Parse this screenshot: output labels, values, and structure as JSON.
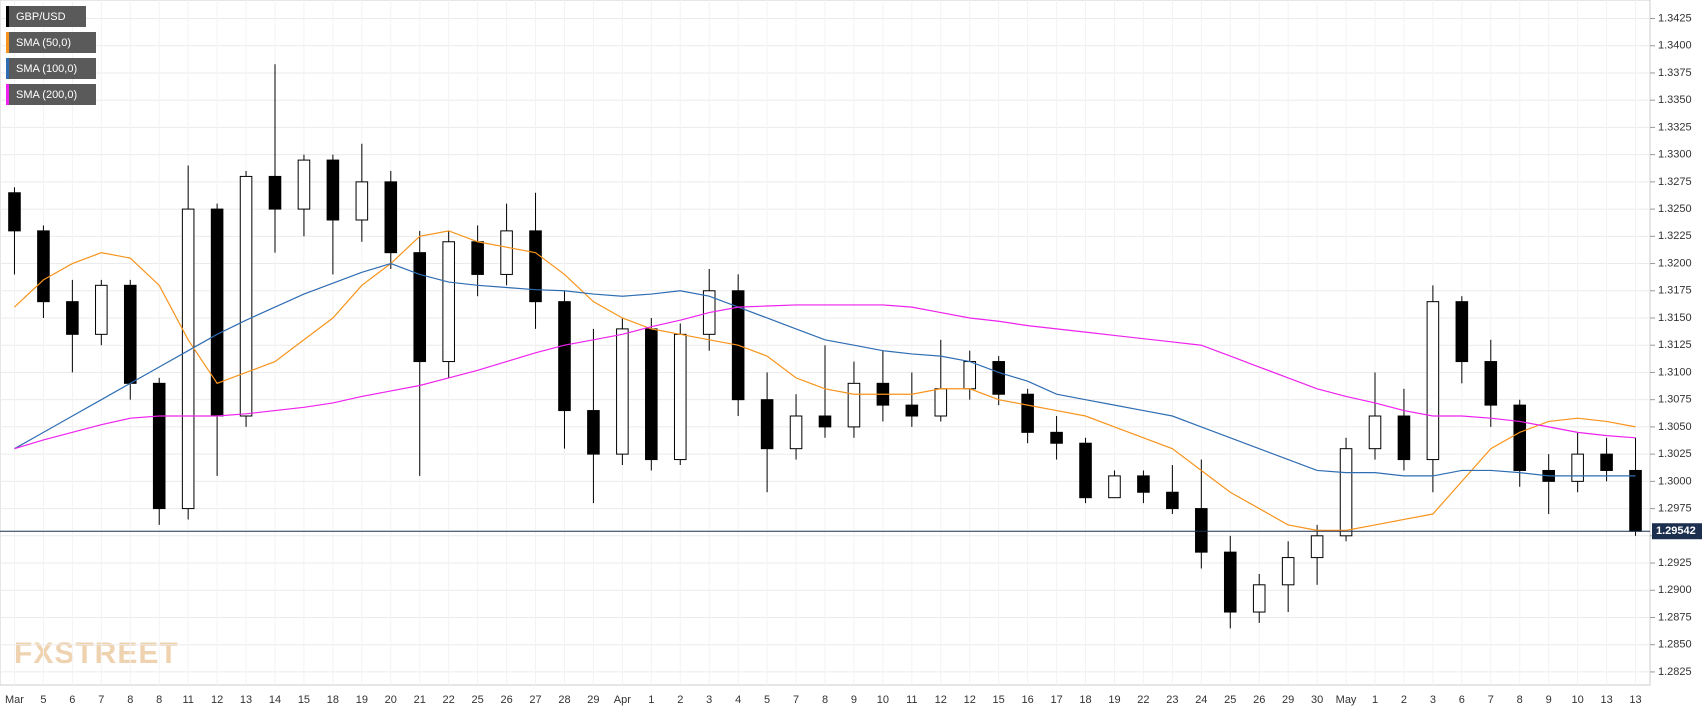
{
  "chart_data": {
    "type": "candlestick",
    "categories": [
      "Mar",
      "5",
      "6",
      "7",
      "8",
      "8",
      "11",
      "12",
      "13",
      "14",
      "15",
      "18",
      "19",
      "20",
      "21",
      "22",
      "25",
      "26",
      "27",
      "28",
      "29",
      "Apr",
      "1",
      "2",
      "3",
      "4",
      "5",
      "7",
      "8",
      "9",
      "10",
      "11",
      "12",
      "12",
      "15",
      "16",
      "17",
      "18",
      "19",
      "22",
      "23",
      "24",
      "25",
      "26",
      "29",
      "30",
      "May",
      "1",
      "2",
      "3",
      "6",
      "7",
      "8",
      "9",
      "10",
      "13",
      "13"
    ],
    "name": "GBP/USD",
    "open": [
      1.3265,
      1.323,
      1.3165,
      1.3135,
      1.318,
      1.309,
      1.2975,
      1.325,
      1.306,
      1.328,
      1.325,
      1.3295,
      1.324,
      1.3275,
      1.321,
      1.311,
      1.322,
      1.319,
      1.323,
      1.3165,
      1.3065,
      1.3025,
      1.314,
      1.302,
      1.3135,
      1.3175,
      1.3075,
      1.303,
      1.306,
      1.305,
      1.309,
      1.307,
      1.306,
      1.3085,
      1.311,
      1.308,
      1.3045,
      1.3035,
      1.2985,
      1.3005,
      1.299,
      1.2975,
      1.2935,
      1.288,
      1.2905,
      1.293,
      1.295,
      1.303,
      1.306,
      1.302,
      1.3165,
      1.311,
      1.307,
      1.301,
      1.3,
      1.3025,
      1.301
    ],
    "high": [
      1.327,
      1.3235,
      1.3185,
      1.3185,
      1.3185,
      1.3095,
      1.329,
      1.3255,
      1.3285,
      1.3383,
      1.33,
      1.33,
      1.331,
      1.3285,
      1.323,
      1.323,
      1.3235,
      1.3255,
      1.3265,
      1.3175,
      1.314,
      1.315,
      1.315,
      1.3145,
      1.3195,
      1.319,
      1.31,
      1.308,
      1.3125,
      1.311,
      1.312,
      1.31,
      1.313,
      1.312,
      1.3115,
      1.3085,
      1.306,
      1.304,
      1.301,
      1.301,
      1.3015,
      1.302,
      1.295,
      1.2915,
      1.2945,
      1.296,
      1.304,
      1.31,
      1.3085,
      1.318,
      1.317,
      1.313,
      1.3075,
      1.3025,
      1.3045,
      1.304,
      1.304
    ],
    "low": [
      1.319,
      1.315,
      1.31,
      1.3125,
      1.3075,
      1.296,
      1.2965,
      1.3005,
      1.305,
      1.321,
      1.3225,
      1.319,
      1.322,
      1.3195,
      1.3005,
      1.3095,
      1.317,
      1.318,
      1.314,
      1.303,
      1.298,
      1.3015,
      1.301,
      1.3015,
      1.312,
      1.306,
      1.299,
      1.302,
      1.304,
      1.304,
      1.3055,
      1.305,
      1.3055,
      1.3075,
      1.307,
      1.3035,
      1.302,
      1.298,
      1.2985,
      1.298,
      1.297,
      1.292,
      1.2865,
      1.287,
      1.288,
      1.2905,
      1.2945,
      1.302,
      1.301,
      1.299,
      1.309,
      1.305,
      1.2995,
      1.297,
      1.299,
      1.3,
      1.295
    ],
    "close": [
      1.323,
      1.3165,
      1.3135,
      1.318,
      1.309,
      1.2975,
      1.325,
      1.306,
      1.328,
      1.325,
      1.3295,
      1.324,
      1.3275,
      1.321,
      1.311,
      1.322,
      1.319,
      1.323,
      1.3165,
      1.3065,
      1.3025,
      1.314,
      1.302,
      1.3135,
      1.3175,
      1.3075,
      1.303,
      1.306,
      1.305,
      1.309,
      1.307,
      1.306,
      1.3085,
      1.311,
      1.308,
      1.3045,
      1.3035,
      1.2985,
      1.3005,
      1.299,
      1.2975,
      1.2935,
      1.288,
      1.2905,
      1.293,
      1.295,
      1.303,
      1.306,
      1.302,
      1.3165,
      1.311,
      1.307,
      1.301,
      1.3,
      1.3025,
      1.301,
      1.29542
    ],
    "series": [
      {
        "name": "SMA (50,0)",
        "color": "#f7941d",
        "values": [
          1.316,
          1.3185,
          1.32,
          1.321,
          1.3205,
          1.318,
          1.313,
          1.309,
          1.31,
          1.311,
          1.313,
          1.315,
          1.318,
          1.32,
          1.3225,
          1.323,
          1.322,
          1.3215,
          1.321,
          1.319,
          1.3165,
          1.315,
          1.314,
          1.3135,
          1.313,
          1.3125,
          1.3115,
          1.3095,
          1.3085,
          1.308,
          1.308,
          1.308,
          1.3085,
          1.3085,
          1.3075,
          1.307,
          1.3065,
          1.306,
          1.305,
          1.304,
          1.303,
          1.301,
          1.299,
          1.2975,
          1.296,
          1.2955,
          1.2955,
          1.296,
          1.2965,
          1.297,
          1.3,
          1.303,
          1.3045,
          1.3055,
          1.3058,
          1.3055,
          1.305
        ]
      },
      {
        "name": "SMA (100,0)",
        "color": "#2f6db3",
        "values": [
          1.303,
          1.3045,
          1.306,
          1.3075,
          1.309,
          1.3105,
          1.312,
          1.3135,
          1.3148,
          1.316,
          1.3172,
          1.3182,
          1.3192,
          1.32,
          1.319,
          1.3183,
          1.318,
          1.3178,
          1.3176,
          1.3175,
          1.3172,
          1.317,
          1.3172,
          1.3175,
          1.317,
          1.316,
          1.315,
          1.314,
          1.313,
          1.3125,
          1.312,
          1.3117,
          1.3115,
          1.311,
          1.31,
          1.3092,
          1.308,
          1.3075,
          1.307,
          1.3065,
          1.306,
          1.305,
          1.304,
          1.303,
          1.302,
          1.301,
          1.3008,
          1.3008,
          1.3005,
          1.3005,
          1.301,
          1.301,
          1.3008,
          1.3005,
          1.3005,
          1.3005,
          1.3005
        ]
      },
      {
        "name": "SMA (200,0)",
        "color": "#ee22ee",
        "values": [
          1.303,
          1.3038,
          1.3045,
          1.3052,
          1.3058,
          1.306,
          1.306,
          1.306,
          1.3062,
          1.3065,
          1.3068,
          1.3072,
          1.3078,
          1.3083,
          1.3088,
          1.3095,
          1.3102,
          1.311,
          1.3118,
          1.3125,
          1.313,
          1.3135,
          1.3142,
          1.3148,
          1.3155,
          1.316,
          1.3161,
          1.3162,
          1.3162,
          1.3162,
          1.3162,
          1.316,
          1.3155,
          1.315,
          1.3147,
          1.3143,
          1.314,
          1.3137,
          1.3134,
          1.3131,
          1.3128,
          1.3125,
          1.3115,
          1.3105,
          1.3095,
          1.3085,
          1.3078,
          1.3072,
          1.3065,
          1.306,
          1.306,
          1.3058,
          1.3055,
          1.305,
          1.3045,
          1.3042,
          1.304
        ]
      }
    ],
    "last_price": 1.29542,
    "ylim": [
      1.2813,
      1.3442
    ],
    "yticks": [
      1.2825,
      {
        "value": 1.285,
        "label": "1.2850"
      },
      1.2875,
      {
        "value": 1.29,
        "label": "1.2900"
      },
      1.2925,
      {
        "value": 1.295,
        "label": "1.2950"
      },
      1.2975,
      {
        "value": 1.3,
        "label": "1.3000"
      },
      1.3025,
      {
        "value": 1.305,
        "label": "1.3050"
      },
      1.3075,
      {
        "value": 1.31,
        "label": "1.3100"
      },
      1.3125,
      {
        "value": 1.315,
        "label": "1.3150"
      },
      1.3175,
      {
        "value": 1.32,
        "label": "1.3200"
      },
      1.3225,
      {
        "value": 1.325,
        "label": "1.3250"
      },
      1.3275,
      {
        "value": 1.33,
        "label": "1.3300"
      },
      1.3325,
      {
        "value": 1.335,
        "label": "1.3350"
      },
      1.3375,
      {
        "value": 1.34,
        "label": "1.3400"
      },
      1.3425
    ],
    "grid": true,
    "watermark": "FXSTREET"
  }
}
